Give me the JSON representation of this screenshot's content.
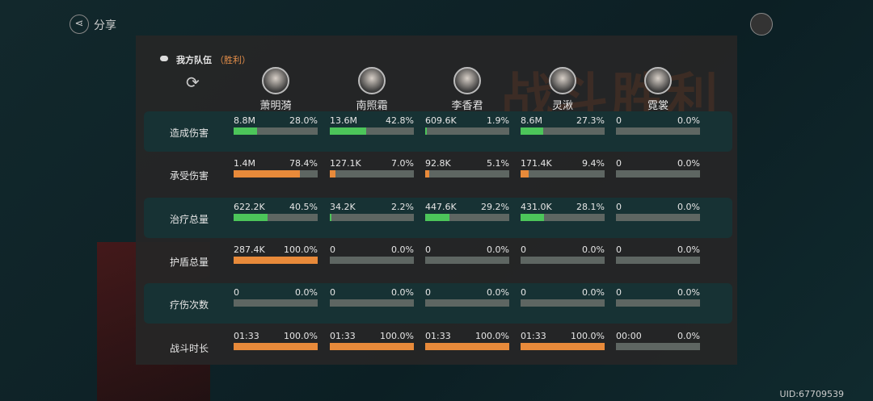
{
  "header": {
    "share": "分享",
    "team": "我方队伍",
    "result": "（胜利）",
    "banner": "战斗胜利",
    "uid": "UID:67709539"
  },
  "heroes": [
    "萧明漪",
    "南照霜",
    "李香君",
    "灵湫",
    "霓裳"
  ],
  "rows": [
    {
      "label": "造成伤害",
      "color": "#4cc55a",
      "cells": [
        {
          "value": "8.8M",
          "share": 28.0,
          "share_label": "28.0%"
        },
        {
          "value": "13.6M",
          "share": 42.8,
          "share_label": "42.8%"
        },
        {
          "value": "609.6K",
          "share": 1.9,
          "share_label": "1.9%"
        },
        {
          "value": "8.6M",
          "share": 27.3,
          "share_label": "27.3%"
        },
        {
          "value": "0",
          "share": 0,
          "share_label": "0.0%"
        }
      ]
    },
    {
      "label": "承受伤害",
      "color": "#e88a3a",
      "cells": [
        {
          "value": "1.4M",
          "share": 78.4,
          "share_label": "78.4%"
        },
        {
          "value": "127.1K",
          "share": 7.0,
          "share_label": "7.0%"
        },
        {
          "value": "92.8K",
          "share": 5.1,
          "share_label": "5.1%"
        },
        {
          "value": "171.4K",
          "share": 9.4,
          "share_label": "9.4%"
        },
        {
          "value": "0",
          "share": 0,
          "share_label": "0.0%"
        }
      ]
    },
    {
      "label": "治疗总量",
      "color": "#4cc55a",
      "cells": [
        {
          "value": "622.2K",
          "share": 40.5,
          "share_label": "40.5%"
        },
        {
          "value": "34.2K",
          "share": 2.2,
          "share_label": "2.2%"
        },
        {
          "value": "447.6K",
          "share": 29.2,
          "share_label": "29.2%"
        },
        {
          "value": "431.0K",
          "share": 28.1,
          "share_label": "28.1%"
        },
        {
          "value": "0",
          "share": 0,
          "share_label": "0.0%"
        }
      ]
    },
    {
      "label": "护盾总量",
      "color": "#e88a3a",
      "cells": [
        {
          "value": "287.4K",
          "share": 100.0,
          "share_label": "100.0%"
        },
        {
          "value": "0",
          "share": 0,
          "share_label": "0.0%"
        },
        {
          "value": "0",
          "share": 0,
          "share_label": "0.0%"
        },
        {
          "value": "0",
          "share": 0,
          "share_label": "0.0%"
        },
        {
          "value": "0",
          "share": 0,
          "share_label": "0.0%"
        }
      ]
    },
    {
      "label": "疗伤次数",
      "color": "#e88a3a",
      "cells": [
        {
          "value": "0",
          "share": 0,
          "share_label": "0.0%"
        },
        {
          "value": "0",
          "share": 0,
          "share_label": "0.0%"
        },
        {
          "value": "0",
          "share": 0,
          "share_label": "0.0%"
        },
        {
          "value": "0",
          "share": 0,
          "share_label": "0.0%"
        },
        {
          "value": "0",
          "share": 0,
          "share_label": "0.0%"
        }
      ]
    },
    {
      "label": "战斗时长",
      "color": "#e88a3a",
      "cells": [
        {
          "value": "01:33",
          "share": 100.0,
          "share_label": "100.0%"
        },
        {
          "value": "01:33",
          "share": 100.0,
          "share_label": "100.0%"
        },
        {
          "value": "01:33",
          "share": 100.0,
          "share_label": "100.0%"
        },
        {
          "value": "01:33",
          "share": 100.0,
          "share_label": "100.0%"
        },
        {
          "value": "00:00",
          "share": 0,
          "share_label": "0.0%"
        }
      ]
    }
  ]
}
